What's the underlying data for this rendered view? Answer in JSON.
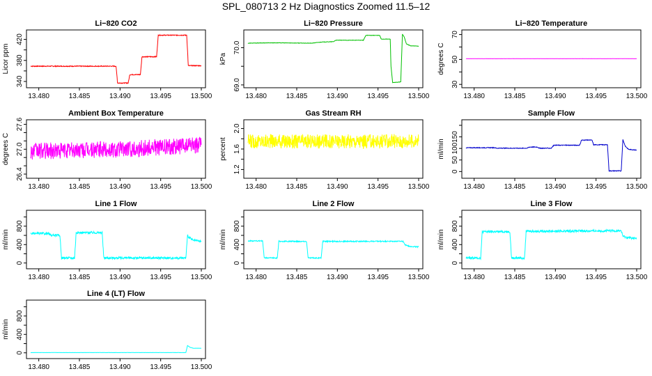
{
  "figure_title": "SPL_080713  2 Hz Diagnostics Zoomed 11.5–12",
  "chart_data": [
    {
      "type": "line",
      "title": "Li−820 CO2",
      "ylabel": "Licor ppm",
      "color": "#ff0000",
      "xlim": [
        13.479,
        13.5
      ],
      "ylim": [
        332,
        434
      ],
      "xticks": [
        "13.480",
        "13.485",
        "13.490",
        "13.495",
        "13.500"
      ],
      "yticks": [
        340,
        360,
        380,
        400,
        420
      ],
      "ytick_labels": [
        "340",
        "",
        "380",
        "",
        "420"
      ],
      "x": [
        13.479,
        13.4895,
        13.4897,
        13.491,
        13.4912,
        13.4925,
        13.4927,
        13.4945,
        13.4947,
        13.4982,
        13.4984,
        13.5
      ],
      "y": [
        369,
        369,
        337,
        337,
        353,
        353,
        387,
        387,
        428,
        428,
        370,
        370
      ],
      "noise": 0.8
    },
    {
      "type": "line",
      "title": "Li−820 Pressure",
      "ylabel": "kPa",
      "color": "#00c000",
      "xlim": [
        13.479,
        13.5
      ],
      "ylim": [
        68.98,
        70.42
      ],
      "xticks": [
        "13.480",
        "13.485",
        "13.490",
        "13.495",
        "13.500"
      ],
      "yticks": [
        69.0,
        69.5,
        70.0
      ],
      "ytick_labels": [
        "69.0",
        "",
        "70.0"
      ],
      "x": [
        13.479,
        13.4815,
        13.4828,
        13.4868,
        13.488,
        13.4895,
        13.4898,
        13.4932,
        13.4935,
        13.4952,
        13.4954,
        13.4965,
        13.4966,
        13.4968,
        13.4978,
        13.498,
        13.4982,
        13.4985,
        13.499,
        13.5
      ],
      "y": [
        70.12,
        70.13,
        70.13,
        70.12,
        70.15,
        70.16,
        70.2,
        70.2,
        70.33,
        70.33,
        70.23,
        70.23,
        69.5,
        69.06,
        69.08,
        70.36,
        70.3,
        70.1,
        70.05,
        70.04
      ],
      "noise": 0.005
    },
    {
      "type": "line",
      "title": "Li−820 Temperature",
      "ylabel": "degrees C",
      "color": "#ff00ff",
      "xlim": [
        13.479,
        13.5
      ],
      "ylim": [
        29,
        72
      ],
      "xticks": [
        "13.480",
        "13.485",
        "13.490",
        "13.495",
        "13.500"
      ],
      "yticks": [
        30,
        40,
        50,
        60,
        70
      ],
      "ytick_labels": [
        "30",
        "",
        "50",
        "",
        "70"
      ],
      "x": [
        13.479,
        13.5
      ],
      "y": [
        50.6,
        50.6
      ],
      "noise": 0.05
    },
    {
      "type": "line",
      "title": "Ambient Box Temperature",
      "ylabel": "degrees C",
      "color": "#ff00ff",
      "xlim": [
        13.479,
        13.5
      ],
      "ylim": [
        26.35,
        27.66
      ],
      "xticks": [
        "13.480",
        "13.485",
        "13.490",
        "13.495",
        "13.500"
      ],
      "yticks": [
        26.4,
        26.6,
        26.8,
        27.0,
        27.2,
        27.4,
        27.6
      ],
      "ytick_labels": [
        "26.4",
        "",
        "",
        "27.0",
        "",
        "",
        "27.6"
      ],
      "x": [
        13.479,
        13.485,
        13.49,
        13.5
      ],
      "y": [
        26.95,
        26.98,
        27.0,
        27.1
      ],
      "noise": 0.2
    },
    {
      "type": "line",
      "title": "Gas Stream RH",
      "ylabel": "percent",
      "color": "#ffff00",
      "xlim": [
        13.479,
        13.5
      ],
      "ylim": [
        1.07,
        2.13
      ],
      "xticks": [
        "13.480",
        "13.485",
        "13.490",
        "13.495",
        "13.500"
      ],
      "yticks": [
        1.2,
        1.4,
        1.6,
        1.8,
        2.0
      ],
      "ytick_labels": [
        "1.2",
        "",
        "1.6",
        "",
        "2.0"
      ],
      "x": [
        13.479,
        13.5
      ],
      "y": [
        1.75,
        1.75
      ],
      "noise": 0.14
    },
    {
      "type": "line",
      "title": "Sample Flow",
      "ylabel": "ml/min",
      "color": "#0000cc",
      "xlim": [
        13.479,
        13.5
      ],
      "ylim": [
        -20,
        215
      ],
      "xticks": [
        "13.480",
        "13.485",
        "13.490",
        "13.495",
        "13.500"
      ],
      "yticks": [
        0,
        50,
        100,
        150,
        200
      ],
      "ytick_labels": [
        "0",
        "50",
        "100",
        "150",
        ""
      ],
      "x": [
        13.479,
        13.4825,
        13.4828,
        13.4865,
        13.4868,
        13.4878,
        13.488,
        13.4895,
        13.4898,
        13.493,
        13.4932,
        13.4945,
        13.4947,
        13.4964,
        13.4966,
        13.4981,
        13.4983,
        13.4986,
        13.499,
        13.5
      ],
      "y": [
        103,
        103,
        101,
        101,
        106,
        106,
        101,
        101,
        114,
        114,
        136,
        136,
        116,
        116,
        3,
        3,
        138,
        110,
        96,
        93
      ],
      "noise": 1.5
    },
    {
      "type": "line",
      "title": "Line 1 Flow",
      "ylabel": "ml/min",
      "color": "#00ffff",
      "xlim": [
        13.479,
        13.5
      ],
      "ylim": [
        -80,
        1100
      ],
      "xticks": [
        "13.480",
        "13.485",
        "13.490",
        "13.495",
        "13.500"
      ],
      "yticks": [
        0,
        200,
        400,
        600,
        800,
        1000
      ],
      "ytick_labels": [
        "0",
        "",
        "400",
        "",
        "800",
        ""
      ],
      "x": [
        13.479,
        13.4812,
        13.4815,
        13.4826,
        13.4828,
        13.4844,
        13.4846,
        13.4878,
        13.488,
        13.4981,
        13.4983,
        13.4987,
        13.499,
        13.5
      ],
      "y": [
        640,
        640,
        600,
        600,
        110,
        110,
        660,
        660,
        110,
        110,
        590,
        530,
        490,
        470
      ],
      "noise": 25
    },
    {
      "type": "line",
      "title": "Line 2 Flow",
      "ylabel": "ml/min",
      "color": "#00ffff",
      "xlim": [
        13.479,
        13.5
      ],
      "ylim": [
        -80,
        1100
      ],
      "xticks": [
        "13.480",
        "13.485",
        "13.490",
        "13.495",
        "13.500"
      ],
      "yticks": [
        0,
        200,
        400,
        600,
        800,
        1000
      ],
      "ytick_labels": [
        "0",
        "",
        "400",
        "",
        "800",
        ""
      ],
      "x": [
        13.479,
        13.4808,
        13.481,
        13.4826,
        13.4828,
        13.4862,
        13.4864,
        13.488,
        13.4882,
        13.4981,
        13.4983,
        13.4987,
        13.499,
        13.5
      ],
      "y": [
        480,
        480,
        110,
        110,
        470,
        470,
        110,
        110,
        470,
        470,
        400,
        370,
        360,
        350
      ],
      "noise": 12
    },
    {
      "type": "line",
      "title": "Line 3 Flow",
      "ylabel": "ml/min",
      "color": "#00ffff",
      "xlim": [
        13.479,
        13.5
      ],
      "ylim": [
        -80,
        1100
      ],
      "xticks": [
        "13.480",
        "13.485",
        "13.490",
        "13.495",
        "13.500"
      ],
      "yticks": [
        0,
        200,
        400,
        600,
        800,
        1000
      ],
      "ytick_labels": [
        "0",
        "",
        "400",
        "",
        "800",
        ""
      ],
      "x": [
        13.479,
        13.4808,
        13.481,
        13.4844,
        13.4846,
        13.4862,
        13.4864,
        13.4981,
        13.4983,
        13.4987,
        13.499,
        13.5
      ],
      "y": [
        110,
        110,
        680,
        680,
        110,
        110,
        690,
        700,
        580,
        560,
        550,
        530
      ],
      "noise": 25
    },
    {
      "type": "line",
      "title": "Line 4 (LT) Flow",
      "ylabel": "ml/min",
      "color": "#00ffff",
      "xlim": [
        13.479,
        13.5
      ],
      "ylim": [
        -80,
        1100
      ],
      "xticks": [
        "13.480",
        "13.485",
        "13.490",
        "13.495",
        "13.500"
      ],
      "yticks": [
        0,
        200,
        400,
        600,
        800,
        1000
      ],
      "ytick_labels": [
        "0",
        "",
        "400",
        "",
        "800",
        ""
      ],
      "x": [
        13.479,
        13.4981,
        13.4983,
        13.4986,
        13.499,
        13.5
      ],
      "y": [
        5,
        5,
        160,
        120,
        100,
        100
      ],
      "noise": 2
    }
  ]
}
